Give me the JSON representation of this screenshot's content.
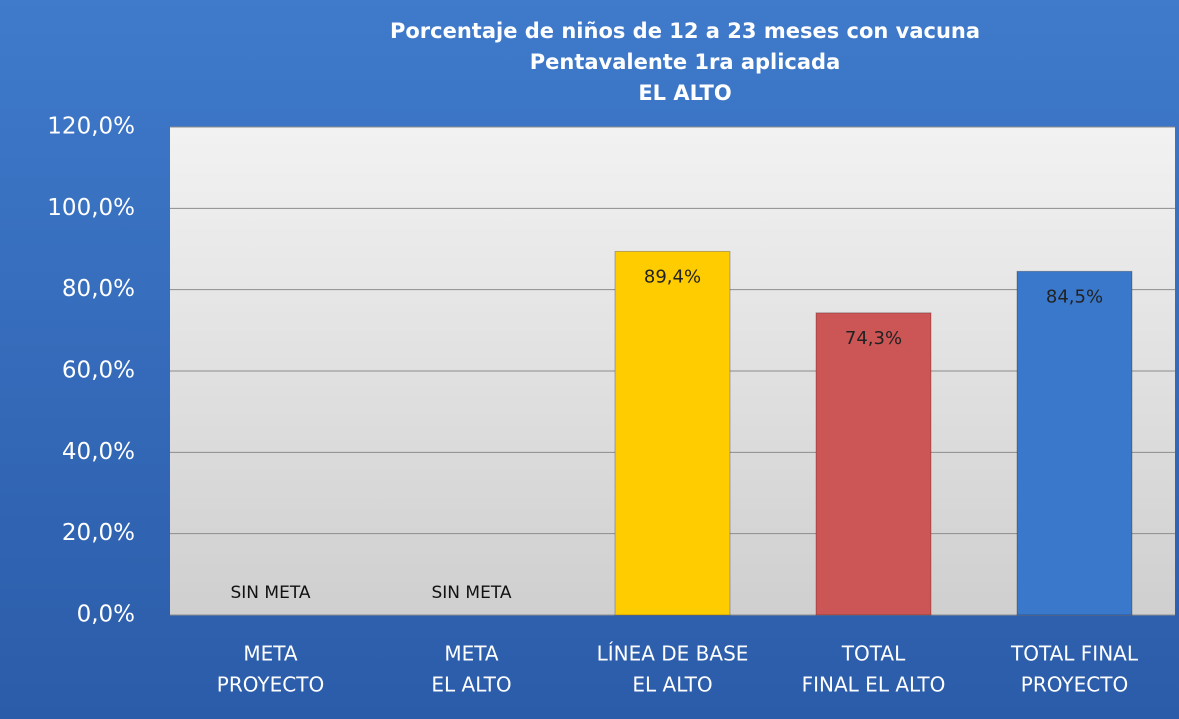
{
  "chart_data": {
    "type": "bar",
    "title": [
      "Porcentaje de niños de 12 a 23 meses con vacuna",
      "Pentavalente 1ra aplicada",
      "EL  ALTO"
    ],
    "categories": [
      [
        "META",
        "PROYECTO"
      ],
      [
        "META",
        "EL ALTO"
      ],
      [
        "LÍNEA DE BASE",
        "EL ALTO"
      ],
      [
        "TOTAL",
        "FINAL EL ALTO"
      ],
      [
        "TOTAL FINAL",
        "PROYECTO"
      ]
    ],
    "values": [
      null,
      null,
      89.4,
      74.3,
      84.5
    ],
    "value_labels": [
      "SIN META",
      "SIN META",
      "89,4%",
      "74,3%",
      "84,5%"
    ],
    "colors": [
      "#ffcc00",
      "#ffcc00",
      "#ffcc00",
      "#cc5555",
      "#3a78cc"
    ],
    "ylim": [
      0,
      120
    ],
    "yticks": [
      {
        "value": 0,
        "label": "0,0%"
      },
      {
        "value": 20,
        "label": "20,0%"
      },
      {
        "value": 40,
        "label": "40,0%"
      },
      {
        "value": 60,
        "label": "60,0%"
      },
      {
        "value": 80,
        "label": "80,0%"
      },
      {
        "value": 100,
        "label": "100,0%"
      },
      {
        "value": 120,
        "label": "120,0%"
      }
    ],
    "grid": true
  }
}
